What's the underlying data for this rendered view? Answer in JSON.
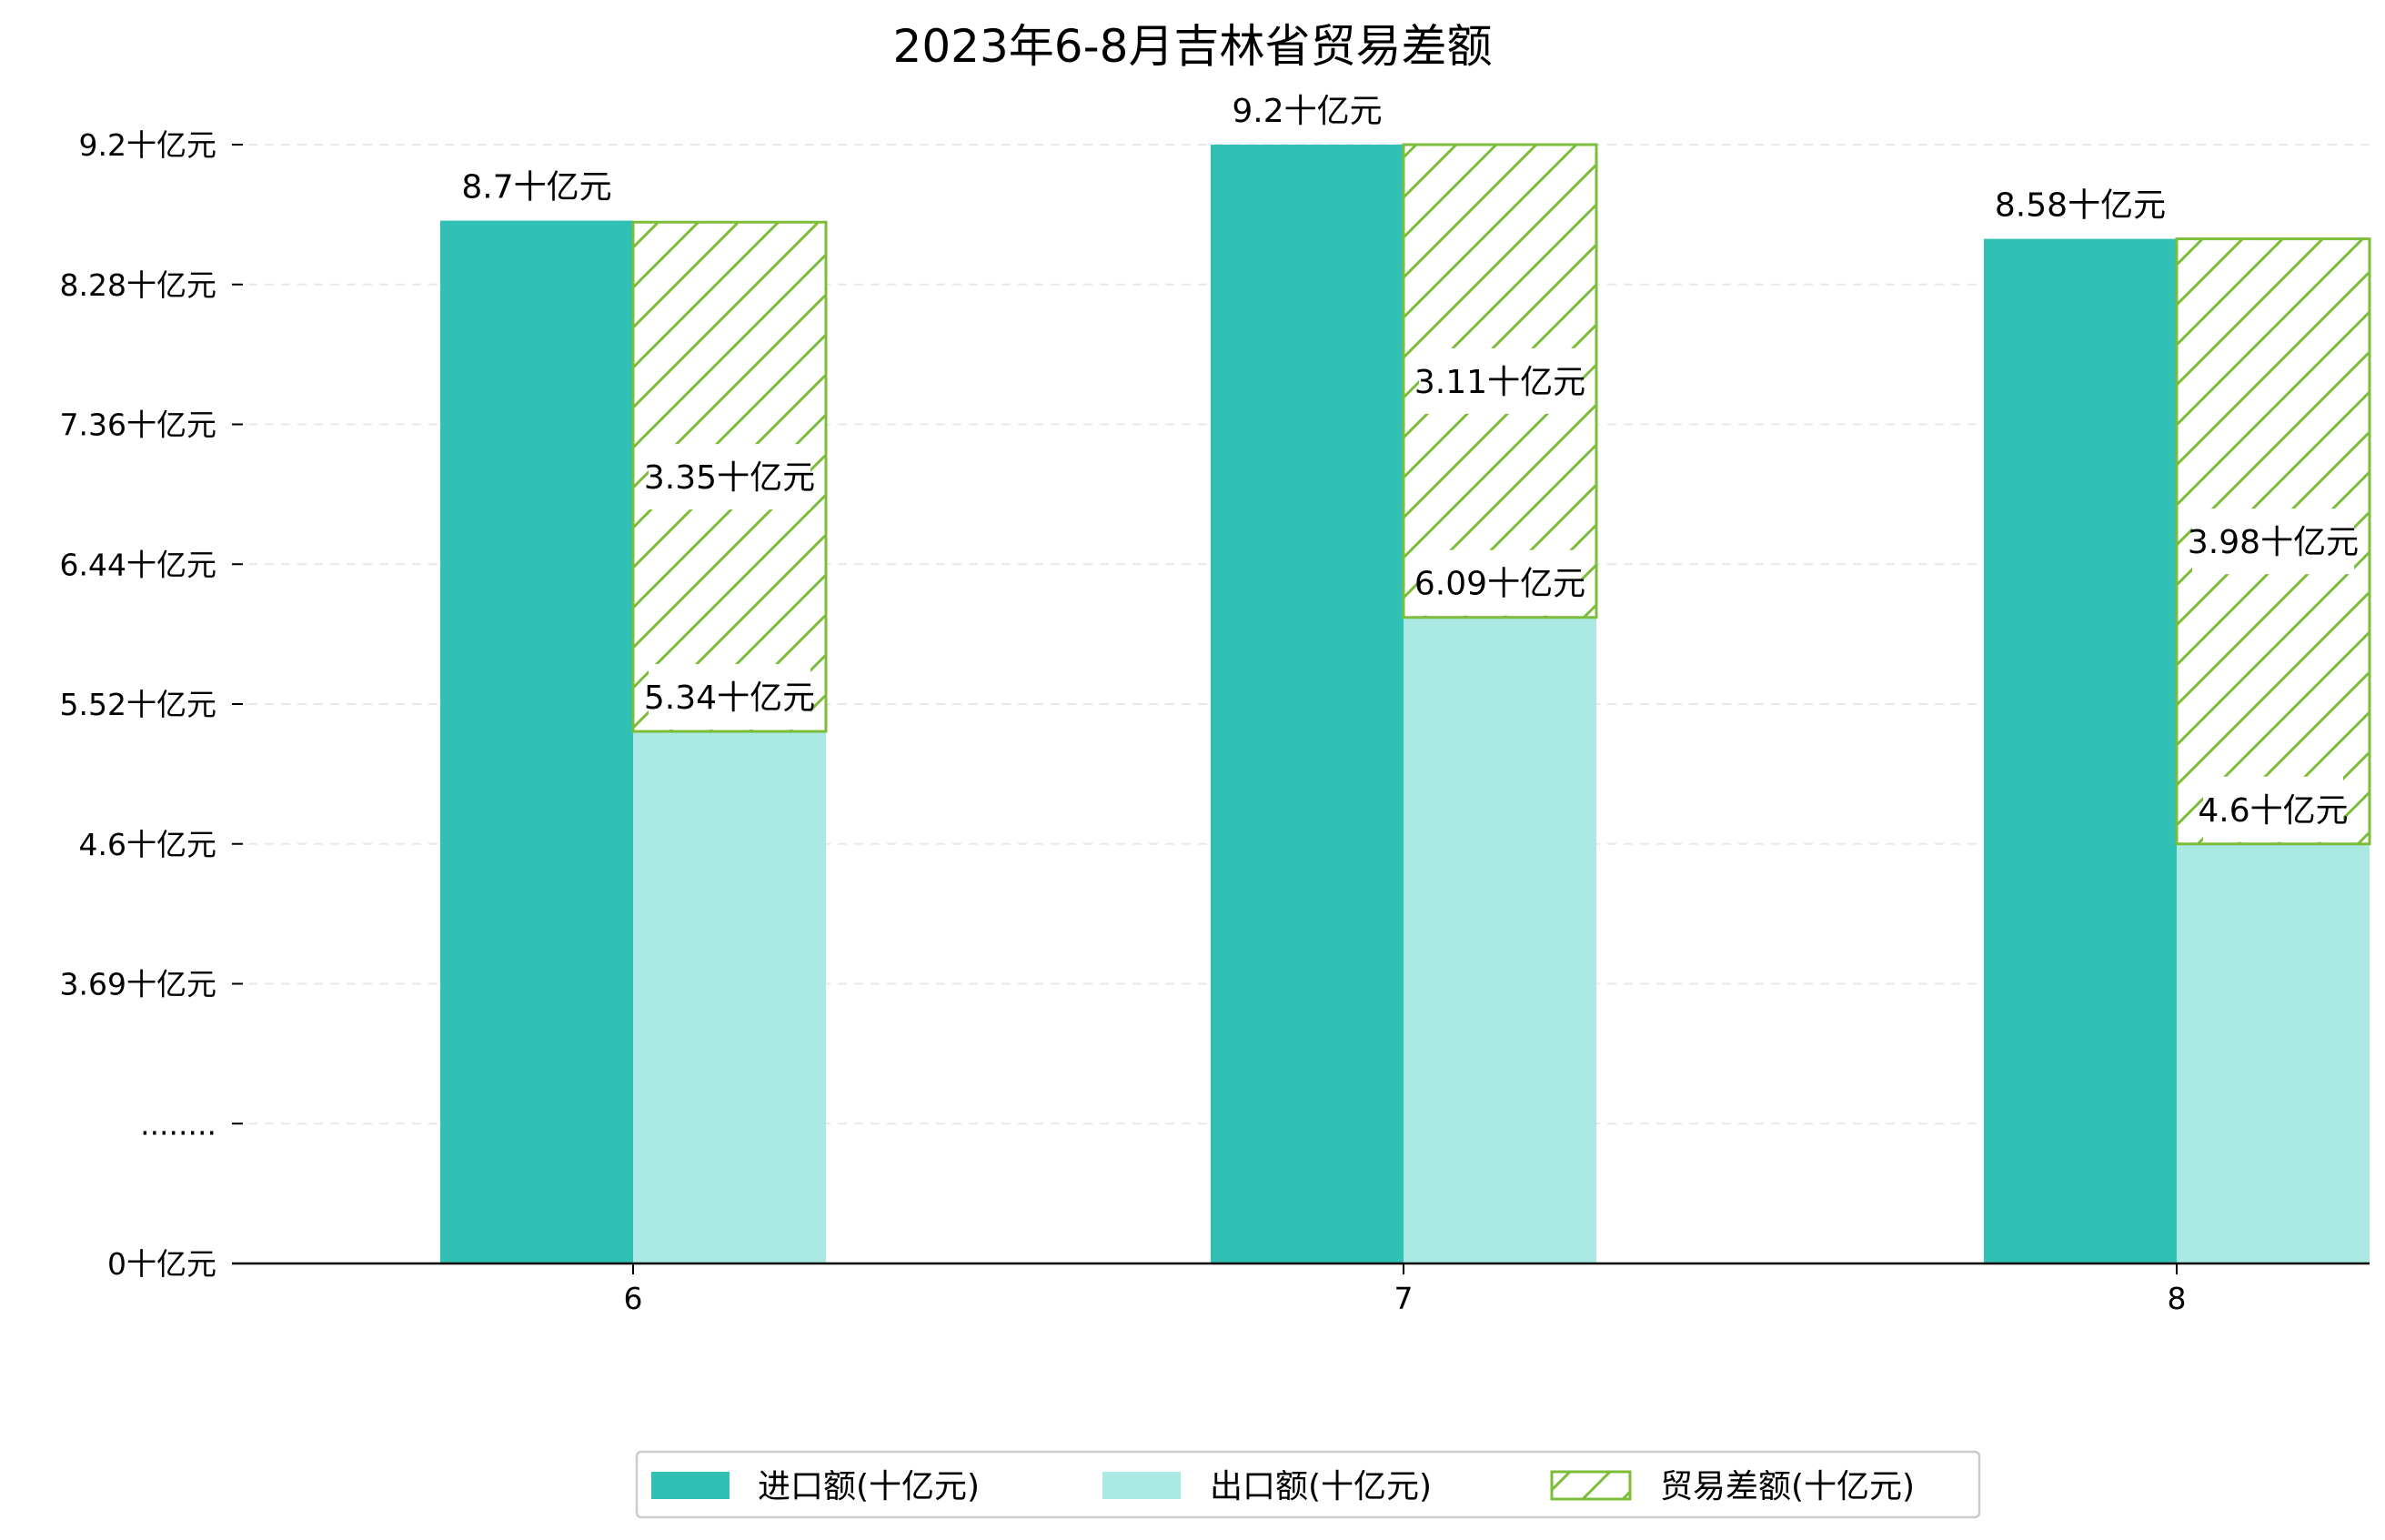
{
  "chart_data": {
    "type": "bar",
    "title": "2023年6-8月吉林省贸易差额",
    "categories": [
      "6",
      "7",
      "8"
    ],
    "series": [
      {
        "name": "进口额(十亿元)",
        "values": [
          8.7,
          9.2,
          8.58
        ],
        "color": "#30c0b4",
        "style": "solid"
      },
      {
        "name": "出口额(十亿元)",
        "values": [
          5.34,
          6.09,
          4.6
        ],
        "color": "#aae8e2",
        "style": "solid"
      },
      {
        "name": "贸易差额(十亿元)",
        "values": [
          3.35,
          3.11,
          3.98
        ],
        "color": "#7cbd3a",
        "style": "hatched"
      }
    ],
    "data_labels": {
      "import": [
        "8.7十亿元",
        "9.2十亿元",
        "8.58十亿元"
      ],
      "export": [
        "5.34十亿元",
        "6.09十亿元",
        "4.6十亿元"
      ],
      "balance": [
        "3.35十亿元",
        "3.11十亿元",
        "3.98十亿元"
      ]
    },
    "y_ticks": [
      {
        "value": 0,
        "label": "0十亿元"
      },
      {
        "value": 0.92,
        "label": "........"
      },
      {
        "value": 1.84,
        "label": "3.69十亿元"
      },
      {
        "value": 2.76,
        "label": "4.6十亿元"
      },
      {
        "value": 3.68,
        "label": "5.52十亿元"
      },
      {
        "value": 4.6,
        "label": "6.44十亿元"
      },
      {
        "value": 5.52,
        "label": "7.36十亿元"
      },
      {
        "value": 6.44,
        "label": "8.28十亿元"
      },
      {
        "value": 7.36,
        "label": "9.2十亿元"
      }
    ],
    "axis_break": {
      "real_start": 2.76,
      "real_end": 4.6
    },
    "xlabel": "",
    "ylabel": "",
    "ylim": [
      0,
      7.36
    ],
    "grid": "horizontal-dashed",
    "legend_position": "bottom-center"
  }
}
